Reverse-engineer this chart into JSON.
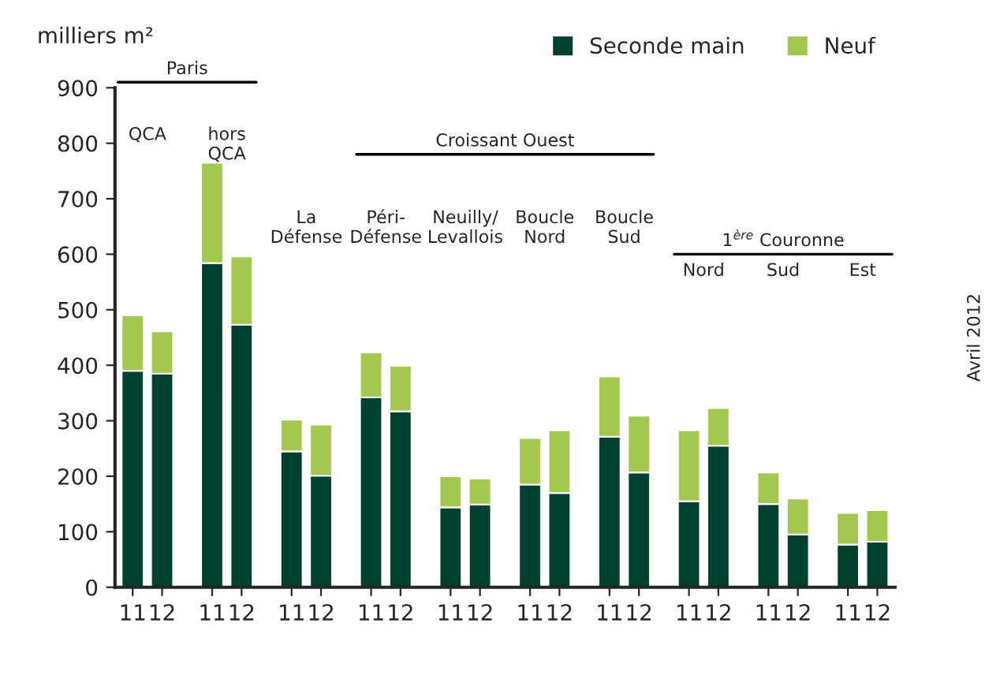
{
  "chart_data": {
    "type": "bar",
    "stacked": true,
    "ylabel": "milliers m²",
    "categories": [
      "11",
      "12",
      "11",
      "12",
      "11",
      "12",
      "11",
      "12",
      "11",
      "12",
      "11",
      "12",
      "11",
      "12",
      "11",
      "12",
      "11",
      "12",
      "11",
      "12"
    ],
    "series": [
      {
        "name": "Seconde main",
        "color": "#00402f",
        "values": [
          390,
          385,
          584,
          473,
          245,
          201,
          342,
          317,
          144,
          149,
          185,
          170,
          271,
          207,
          155,
          255,
          150,
          95,
          77,
          82
        ]
      },
      {
        "name": "Neuf",
        "color": "#a3c74f",
        "values": [
          100,
          76,
          181,
          123,
          57,
          92,
          81,
          82,
          56,
          47,
          84,
          113,
          109,
          102,
          128,
          68,
          57,
          65,
          57,
          57
        ]
      }
    ],
    "ylim": [
      0,
      900
    ],
    "yticks": [
      0,
      100,
      200,
      300,
      400,
      500,
      600,
      700,
      800,
      900
    ],
    "legend": "top right",
    "grid": false,
    "annotations": [
      "QCA",
      "hors\nQCA",
      "La\nDéfense",
      "Péri-\nDéfense",
      "Neuilly/\nLevallois",
      "Boucle\nNord",
      "Boucle\nSud",
      "Nord",
      "Sud",
      "Est",
      "Paris",
      "Croissant Ouest",
      "1$^{ère}$ Couronne",
      "Avril 2012"
    ]
  }
}
